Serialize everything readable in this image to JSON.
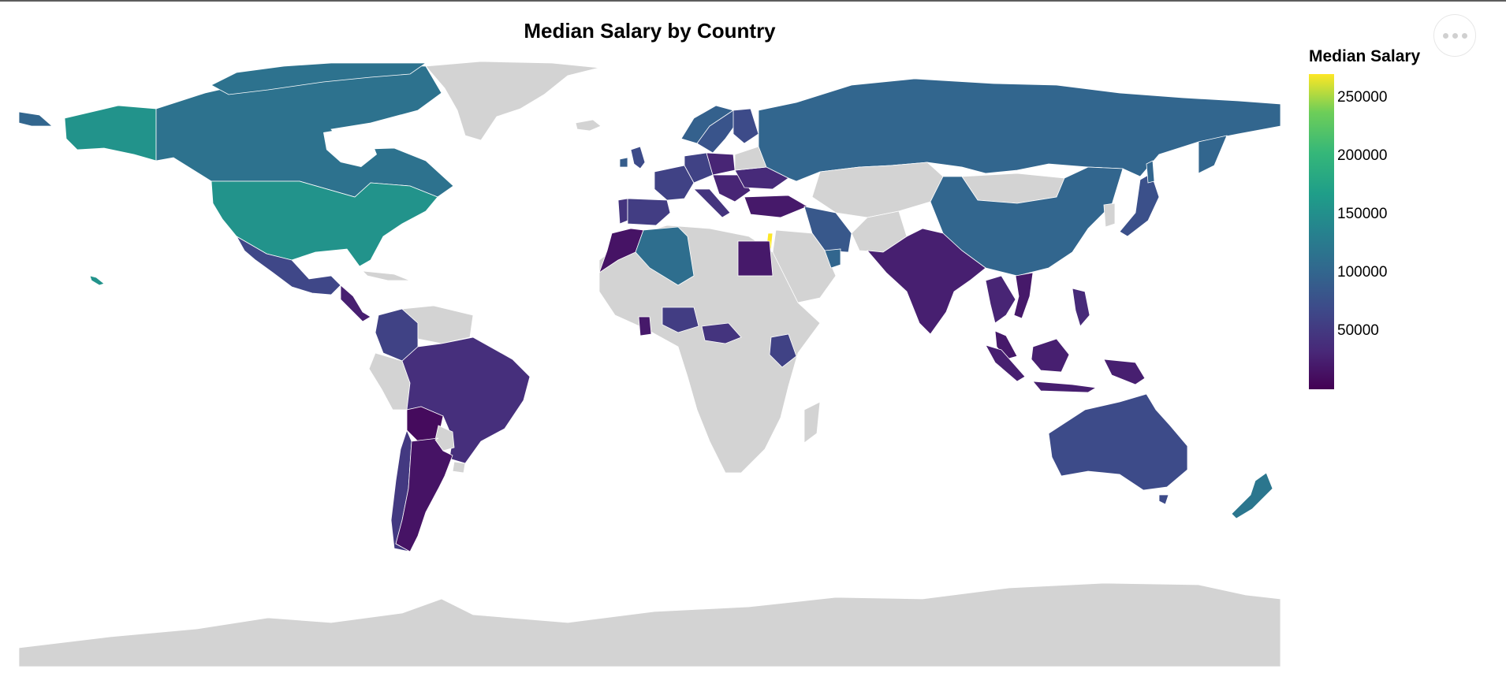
{
  "chart_data": {
    "type": "choropleth",
    "title": "Median Salary by Country",
    "legend": {
      "title": "Median Salary",
      "position": "right",
      "colorscale": "viridis",
      "min": 0,
      "max": 270000,
      "ticks": [
        50000,
        100000,
        150000,
        200000,
        250000
      ]
    },
    "no_data_color": "#d3d3d3",
    "countries": [
      {
        "name": "United States",
        "value": 155000
      },
      {
        "name": "Canada",
        "value": 115000
      },
      {
        "name": "Alaska",
        "value": 155000
      },
      {
        "name": "Mexico",
        "value": 65000
      },
      {
        "name": "Central America",
        "value": 25000
      },
      {
        "name": "Colombia",
        "value": 60000
      },
      {
        "name": "Brazil",
        "value": 40000
      },
      {
        "name": "Bolivia",
        "value": 8000
      },
      {
        "name": "Chile",
        "value": 50000
      },
      {
        "name": "Argentina",
        "value": 15000
      },
      {
        "name": "Portugal",
        "value": 45000
      },
      {
        "name": "Spain",
        "value": 55000
      },
      {
        "name": "France",
        "value": 60000
      },
      {
        "name": "United Kingdom",
        "value": 70000
      },
      {
        "name": "Ireland",
        "value": 90000
      },
      {
        "name": "Germany",
        "value": 60000
      },
      {
        "name": "Poland",
        "value": 30000
      },
      {
        "name": "Italy",
        "value": 45000
      },
      {
        "name": "Norway",
        "value": 95000
      },
      {
        "name": "Sweden",
        "value": 80000
      },
      {
        "name": "Finland",
        "value": 70000
      },
      {
        "name": "Ukraine",
        "value": 35000
      },
      {
        "name": "Turkey",
        "value": 20000
      },
      {
        "name": "Morocco",
        "value": 15000
      },
      {
        "name": "Algeria",
        "value": 110000
      },
      {
        "name": "Egypt",
        "value": 20000
      },
      {
        "name": "Israel",
        "value": 270000
      },
      {
        "name": "Nigeria",
        "value": 55000
      },
      {
        "name": "Ghana",
        "value": 20000
      },
      {
        "name": "Kenya",
        "value": 60000
      },
      {
        "name": "DR Congo",
        "value": 45000
      },
      {
        "name": "Iran",
        "value": 85000
      },
      {
        "name": "UAE",
        "value": 100000
      },
      {
        "name": "India",
        "value": 25000
      },
      {
        "name": "Russia",
        "value": 100000
      },
      {
        "name": "China",
        "value": 100000
      },
      {
        "name": "Japan",
        "value": 75000
      },
      {
        "name": "Thailand",
        "value": 30000
      },
      {
        "name": "Vietnam",
        "value": 20000
      },
      {
        "name": "Malaysia",
        "value": 20000
      },
      {
        "name": "Indonesia",
        "value": 25000
      },
      {
        "name": "Philippines",
        "value": 35000
      },
      {
        "name": "Australia",
        "value": 70000
      },
      {
        "name": "New Zealand",
        "value": 120000
      }
    ]
  },
  "ui": {
    "menu_button": "more-options"
  }
}
